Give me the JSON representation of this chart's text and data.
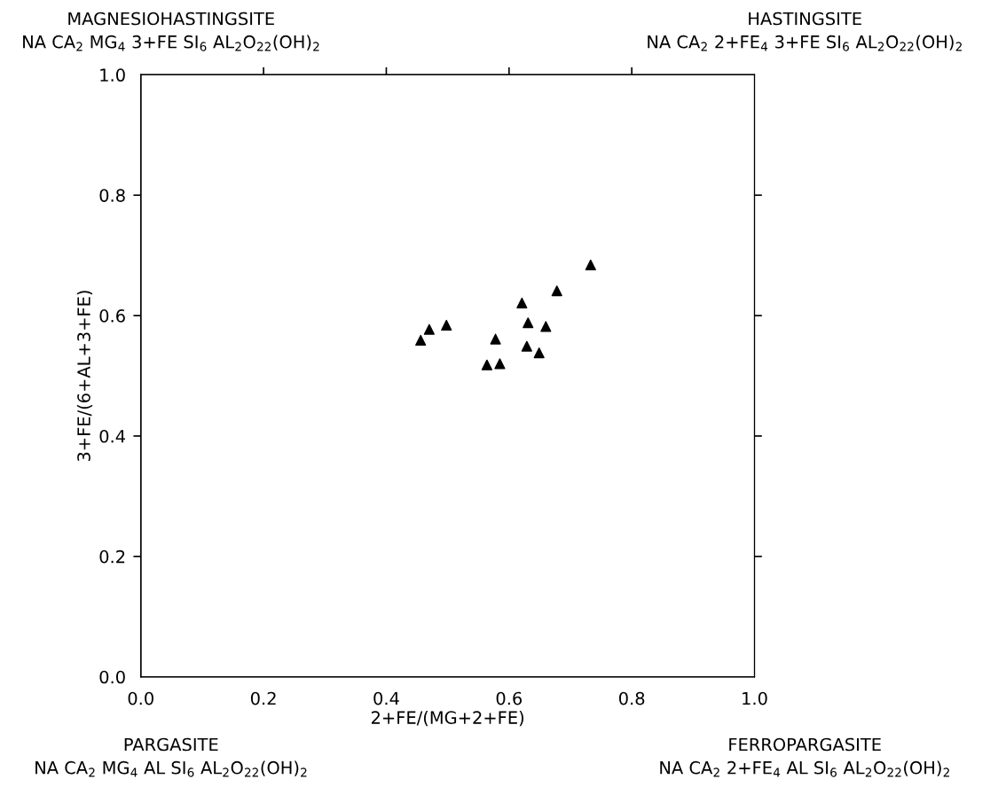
{
  "chart_data": {
    "type": "scatter",
    "xlabel": "2+FE/(MG+2+FE)",
    "ylabel": "3+FE/(6+AL+3+FE)",
    "x": [
      0.456,
      0.47,
      0.498,
      0.564,
      0.585,
      0.578,
      0.621,
      0.631,
      0.629,
      0.649,
      0.66,
      0.678,
      0.733
    ],
    "series": [
      {
        "color": "#000000",
        "values": [
          0.559,
          0.577,
          0.584,
          0.518,
          0.52,
          0.561,
          0.621,
          0.588,
          0.549,
          0.538,
          0.582,
          0.641,
          0.684
        ]
      }
    ],
    "marker": "triangle",
    "xlim": [
      0,
      1
    ],
    "ylim": [
      0,
      1
    ],
    "xticks": [
      {
        "value": 0,
        "label": "0.0"
      },
      0.2,
      0.4,
      0.6,
      0.8,
      {
        "value": 1,
        "label": "1.0"
      }
    ],
    "yticks": [
      {
        "value": 0,
        "label": "0.0"
      },
      0.2,
      0.4,
      0.6,
      0.8,
      {
        "value": 1,
        "label": "1.0"
      }
    ],
    "grid": false,
    "legend": false,
    "annotations": [
      "MAGNESIOHASTINGSITE\nNA CA$_{2}$ MG$_{4}$ 3+FE SI$_{6}$ AL$_{2}$O$_{22}$(OH)$_{2}$",
      "HASTINGSITE\nNA CA$_{2}$ 2+FE$_{4}$ 3+FE SI$_{6}$ AL$_{2}$O$_{22}$(OH)$_{2}$",
      "PARGASITE\nNA CA$_{2}$ MG$_{4}$ AL SI$_{6}$ AL$_{2}$O$_{22}$(OH)$_{2}$",
      "FERROPARGASITE\nNA CA$_{2}$ 2+FE$_{4}$ AL SI$_{6}$ AL$_{2}$O$_{22}$(OH)$_{2}$"
    ]
  }
}
